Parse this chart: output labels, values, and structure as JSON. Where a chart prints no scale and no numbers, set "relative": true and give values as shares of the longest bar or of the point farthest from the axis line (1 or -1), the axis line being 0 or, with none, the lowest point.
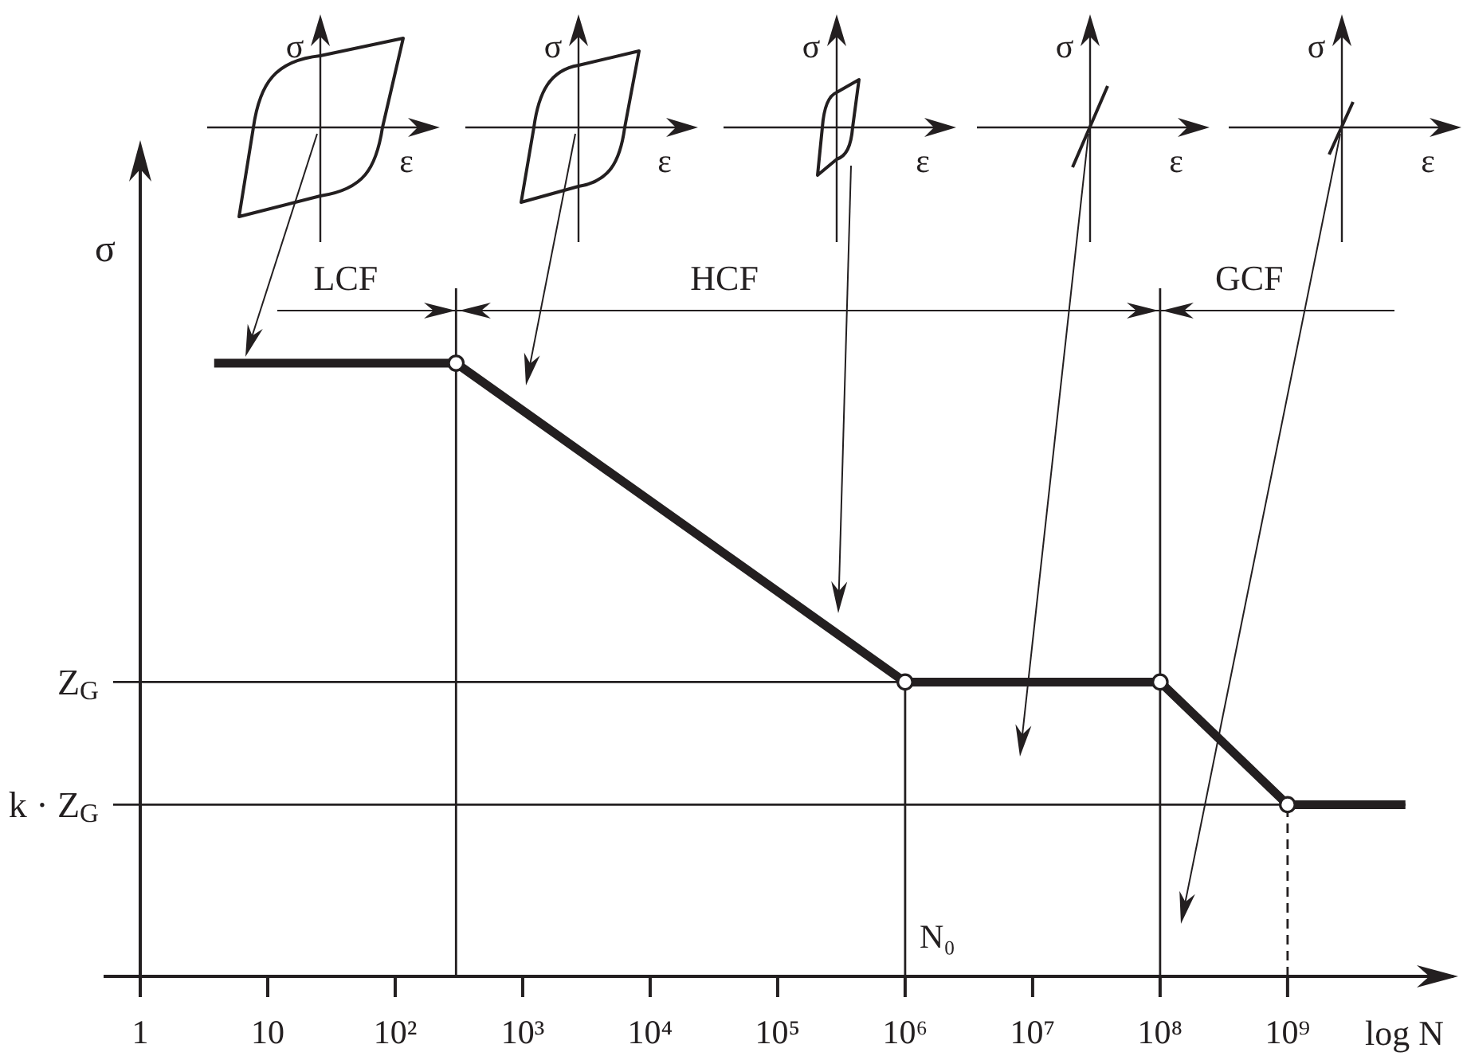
{
  "chart_data": {
    "type": "line",
    "xlabel": "log N",
    "ylabel": "σ",
    "log": "x",
    "relative": true,
    "x": [
      3.8,
      300,
      1000000,
      100000000,
      1000000000,
      8400000000
    ],
    "series": [
      {
        "color": "#231f20",
        "values": [
          1,
          1,
          0.48,
          0.48,
          0.28,
          0.28
        ]
      },
      {
        "type": "scatter",
        "x": [
          300,
          1000000,
          100000000,
          1000000000
        ],
        "values": [
          1,
          0.48,
          0.48,
          0.28
        ],
        "color": "#ffffff",
        "marker": "circle"
      }
    ],
    "xlim": [
      1,
      20000000000
    ],
    "xticks": [
      1,
      10,
      {
        "value": 100,
        "label": "10²"
      },
      {
        "value": 1000,
        "label": "10³"
      },
      {
        "value": 10000,
        "label": "10⁴"
      },
      {
        "value": 100000,
        "label": "10⁵"
      },
      {
        "value": 1000000,
        "label": "10⁶"
      },
      {
        "value": 10000000,
        "label": "10⁷"
      },
      {
        "value": 100000000,
        "label": "10⁸"
      },
      {
        "value": 1000000000,
        "label": "10⁹"
      }
    ],
    "ref_lines": [
      {
        "axis": "y",
        "value": 0.48,
        "label": "Z$_{G}$"
      },
      {
        "axis": "y",
        "value": 0.28,
        "label": "k · Z$_{G}$"
      },
      {
        "axis": "x",
        "value": 300
      },
      {
        "axis": "x",
        "value": 1000000,
        "label": "N₀"
      },
      {
        "axis": "x",
        "value": 100000000
      },
      {
        "axis": "x",
        "value": 1000000000,
        "line_style": "dashed"
      }
    ],
    "annotations": [
      "σ",
      "ε",
      "σ",
      "ε",
      "σ",
      "ε",
      "σ",
      "ε",
      "σ",
      "ε",
      "LCF",
      "HCF",
      "GCF"
    ]
  }
}
